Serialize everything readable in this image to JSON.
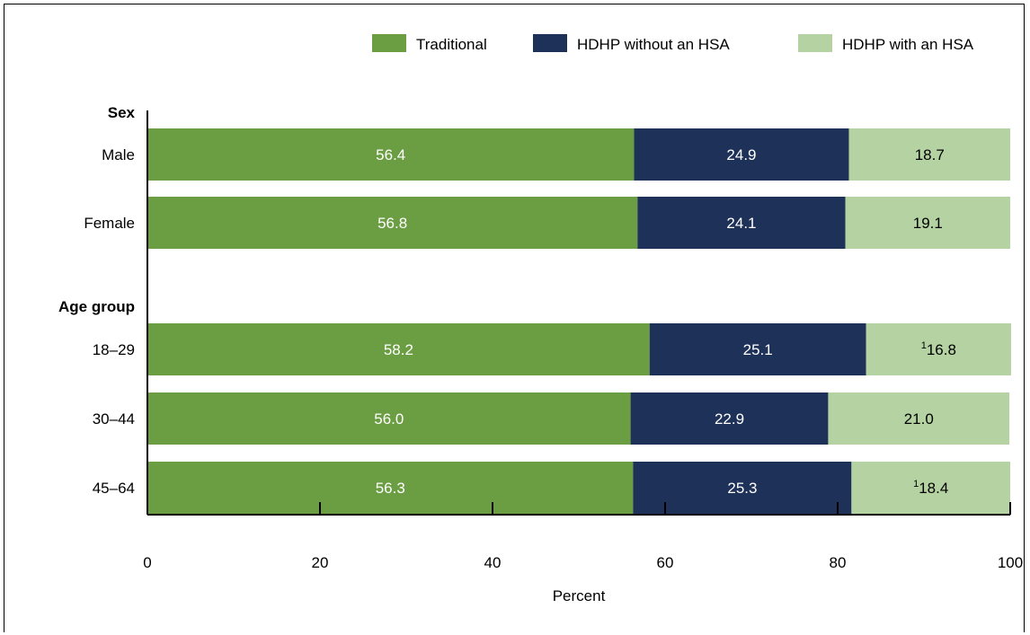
{
  "chart_data": {
    "type": "bar",
    "orientation": "horizontal",
    "stacked": true,
    "xlabel": "Percent",
    "xlim": [
      0,
      100
    ],
    "xticks": [
      0,
      20,
      40,
      60,
      80,
      100
    ],
    "legend_position": "top-right",
    "colors": {
      "Traditional": "#6b9e42",
      "HDHP without an HSA": "#1e3158",
      "HDHP with an HSA": "#b5d3a2"
    },
    "series": [
      {
        "name": "Traditional",
        "values": [
          56.4,
          56.8,
          58.2,
          56.0,
          56.3
        ]
      },
      {
        "name": "HDHP without an HSA",
        "values": [
          24.9,
          24.1,
          25.1,
          22.9,
          25.3
        ]
      },
      {
        "name": "HDHP with an HSA",
        "values": [
          18.7,
          19.1,
          16.8,
          21.0,
          18.4
        ]
      }
    ],
    "groups": [
      {
        "label": "Sex",
        "categories": [
          "Male",
          "Female"
        ]
      },
      {
        "label": "Age group",
        "categories": [
          "18–29",
          "30–44",
          "45–64"
        ]
      }
    ],
    "categories": [
      "Male",
      "Female",
      "18–29",
      "30–44",
      "45–64"
    ],
    "footnote_marks": [
      {
        "category": "18–29",
        "series": "HDHP with an HSA",
        "mark": "1"
      },
      {
        "category": "45–64",
        "series": "HDHP with an HSA",
        "mark": "1"
      }
    ]
  }
}
